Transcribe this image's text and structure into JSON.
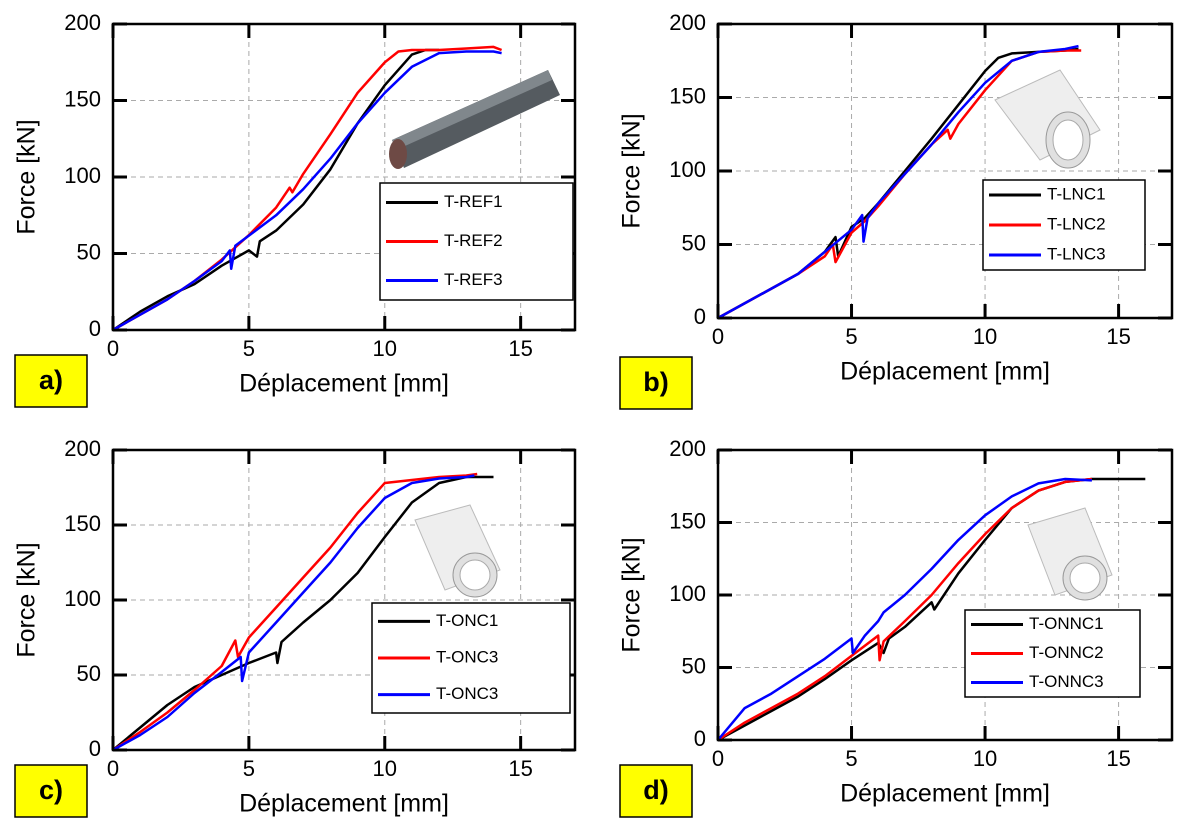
{
  "chart_data": [
    {
      "type": "line",
      "panel_label": "a)",
      "x_label": "Déplacement [mm]",
      "y_label": "Force [kN]",
      "xlim": [
        0,
        17
      ],
      "ylim": [
        0,
        200
      ],
      "xticks": [
        0,
        5,
        10,
        15
      ],
      "yticks": [
        0,
        50,
        100,
        150,
        200
      ],
      "grid": true,
      "legend": "lower right",
      "series": [
        {
          "name": "T-REF1",
          "color": "#000000",
          "x": [
            0,
            1,
            2,
            3,
            4,
            5,
            5.3,
            5.4,
            6,
            7,
            8,
            9,
            10,
            11,
            11.5,
            12
          ],
          "values": [
            0,
            12,
            22,
            30,
            42,
            52,
            48,
            58,
            65,
            82,
            105,
            135,
            160,
            180,
            183,
            183
          ]
        },
        {
          "name": "T-REF2",
          "color": "#ff0000",
          "x": [
            0,
            2,
            3,
            4,
            5,
            6,
            6.5,
            6.6,
            7,
            8,
            9,
            10,
            10.5,
            11,
            12,
            13,
            14,
            14.3
          ],
          "values": [
            0,
            20,
            32,
            46,
            62,
            80,
            93,
            90,
            102,
            128,
            155,
            175,
            182,
            183,
            183,
            184,
            185,
            183
          ]
        },
        {
          "name": "T-REF3",
          "color": "#0000ff",
          "x": [
            0,
            2,
            3,
            4,
            4.3,
            4.35,
            4.5,
            6,
            7,
            8,
            9,
            10,
            11,
            12,
            13,
            14,
            14.3
          ],
          "values": [
            0,
            20,
            32,
            45,
            52,
            40,
            55,
            75,
            92,
            112,
            135,
            155,
            172,
            181,
            182,
            182,
            181
          ]
        }
      ]
    },
    {
      "type": "line",
      "panel_label": "b)",
      "x_label": "Déplacement [mm]",
      "y_label": "Force [kN]",
      "xlim": [
        0,
        17
      ],
      "ylim": [
        0,
        200
      ],
      "xticks": [
        0,
        5,
        10,
        15
      ],
      "yticks": [
        0,
        50,
        100,
        150,
        200
      ],
      "grid": true,
      "legend": "lower right",
      "series": [
        {
          "name": "T-LNC1",
          "color": "#000000",
          "x": [
            0,
            2,
            3,
            4,
            4.4,
            4.5,
            5,
            5.5,
            6,
            7,
            8,
            9,
            10,
            10.5,
            11,
            12,
            13,
            13.5
          ],
          "values": [
            0,
            20,
            30,
            45,
            55,
            42,
            62,
            68,
            78,
            100,
            122,
            145,
            168,
            177,
            180,
            181,
            182,
            183
          ]
        },
        {
          "name": "T-LNC2",
          "color": "#ff0000",
          "x": [
            0,
            2,
            3,
            4,
            4.3,
            4.4,
            5,
            5.5,
            6,
            7,
            8,
            8.6,
            8.7,
            9,
            10,
            11,
            12,
            13,
            13.6
          ],
          "values": [
            0,
            20,
            30,
            42,
            50,
            38,
            58,
            66,
            76,
            98,
            118,
            128,
            122,
            132,
            155,
            175,
            181,
            182,
            182
          ]
        },
        {
          "name": "T-LNC3",
          "color": "#0000ff",
          "x": [
            0,
            2,
            3,
            4,
            5,
            5.4,
            5.45,
            5.6,
            6,
            7,
            8,
            9,
            10,
            11,
            12,
            13,
            13.5
          ],
          "values": [
            0,
            20,
            30,
            45,
            60,
            70,
            52,
            68,
            78,
            98,
            118,
            140,
            160,
            175,
            181,
            183,
            185
          ]
        }
      ]
    },
    {
      "type": "line",
      "panel_label": "c)",
      "x_label": "Déplacement [mm]",
      "y_label": "Force [kN]",
      "xlim": [
        0,
        17
      ],
      "ylim": [
        0,
        200
      ],
      "xticks": [
        0,
        5,
        10,
        15
      ],
      "yticks": [
        0,
        50,
        100,
        150,
        200
      ],
      "grid": true,
      "legend": "lower right",
      "series": [
        {
          "name": "T-ONC1",
          "color": "#000000",
          "x": [
            0,
            1,
            2,
            3,
            4,
            5,
            6,
            6.05,
            6.2,
            7,
            8,
            9,
            10,
            11,
            12,
            13,
            14
          ],
          "values": [
            0,
            15,
            30,
            42,
            50,
            58,
            65,
            58,
            72,
            85,
            100,
            118,
            142,
            165,
            178,
            182,
            182
          ]
        },
        {
          "name": "T-ONC3",
          "color": "#ff0000",
          "x": [
            0,
            1,
            2,
            3,
            4,
            4.5,
            4.6,
            5,
            6,
            7,
            8,
            9,
            10,
            11,
            12,
            13,
            13.4
          ],
          "values": [
            0,
            12,
            25,
            40,
            56,
            73,
            62,
            75,
            95,
            115,
            135,
            158,
            178,
            180,
            182,
            183,
            184
          ]
        },
        {
          "name": "T-ONC3",
          "color": "#0000ff",
          "x": [
            0,
            1,
            2,
            3,
            4,
            4.7,
            4.75,
            5,
            6,
            7,
            8,
            9,
            10,
            11,
            12,
            13,
            13.3
          ],
          "values": [
            0,
            10,
            22,
            38,
            52,
            62,
            46,
            65,
            85,
            105,
            125,
            148,
            168,
            178,
            181,
            182,
            183
          ]
        }
      ]
    },
    {
      "type": "line",
      "panel_label": "d)",
      "x_label": "Déplacement [mm]",
      "y_label": "Force [kN]",
      "xlim": [
        0,
        17
      ],
      "ylim": [
        0,
        200
      ],
      "xticks": [
        0,
        5,
        10,
        15
      ],
      "yticks": [
        0,
        50,
        100,
        150,
        200
      ],
      "grid": true,
      "legend": "lower right",
      "series": [
        {
          "name": "T-ONNC1",
          "color": "#000000",
          "x": [
            0,
            1,
            2,
            3,
            4,
            5,
            6,
            6.2,
            6.4,
            7,
            8,
            8.1,
            9,
            10,
            11,
            12,
            13,
            14,
            15,
            16
          ],
          "values": [
            0,
            10,
            20,
            30,
            42,
            55,
            67,
            60,
            70,
            78,
            95,
            90,
            115,
            138,
            160,
            172,
            178,
            180,
            180,
            180
          ]
        },
        {
          "name": "T-ONNC2",
          "color": "#ff0000",
          "x": [
            0,
            1,
            2,
            3,
            4,
            5,
            6,
            6.05,
            6.2,
            7,
            8,
            9,
            10,
            11,
            12,
            13,
            14
          ],
          "values": [
            0,
            12,
            22,
            32,
            44,
            58,
            72,
            55,
            68,
            82,
            100,
            122,
            142,
            160,
            172,
            178,
            180
          ]
        },
        {
          "name": "T-ONNC3",
          "color": "#0000ff",
          "x": [
            0,
            1,
            2,
            3,
            4,
            5,
            5.05,
            5.5,
            6,
            6.2,
            7,
            8,
            9,
            10,
            11,
            12,
            13,
            14
          ],
          "values": [
            0,
            22,
            32,
            44,
            56,
            70,
            60,
            72,
            82,
            88,
            100,
            118,
            138,
            155,
            168,
            177,
            180,
            179
          ]
        }
      ]
    }
  ]
}
